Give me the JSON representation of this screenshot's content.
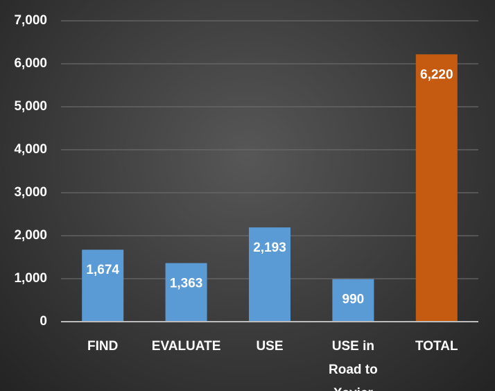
{
  "chart_data": {
    "type": "bar",
    "categories": [
      "FIND",
      "EVALUATE",
      "USE",
      "USE in Road to Xavier",
      "TOTAL"
    ],
    "values": [
      1674,
      1363,
      2193,
      990,
      6220
    ],
    "value_labels": [
      "1,674",
      "1,363",
      "2,193",
      "990",
      "6,220"
    ],
    "colors": [
      "#5b9bd5",
      "#5b9bd5",
      "#5b9bd5",
      "#5b9bd5",
      "#c55a11"
    ],
    "ylim": [
      0,
      7000
    ],
    "yticks": [
      0,
      {
        "value": 1000,
        "label": "1,000"
      },
      {
        "value": 2000,
        "label": "2,000"
      },
      {
        "value": 3000,
        "label": "3,000"
      },
      {
        "value": 4000,
        "label": "4,000"
      },
      {
        "value": 5000,
        "label": "5,000"
      },
      {
        "value": 6000,
        "label": "6,000"
      },
      {
        "value": 7000,
        "label": "7,000"
      }
    ],
    "grid": true
  }
}
